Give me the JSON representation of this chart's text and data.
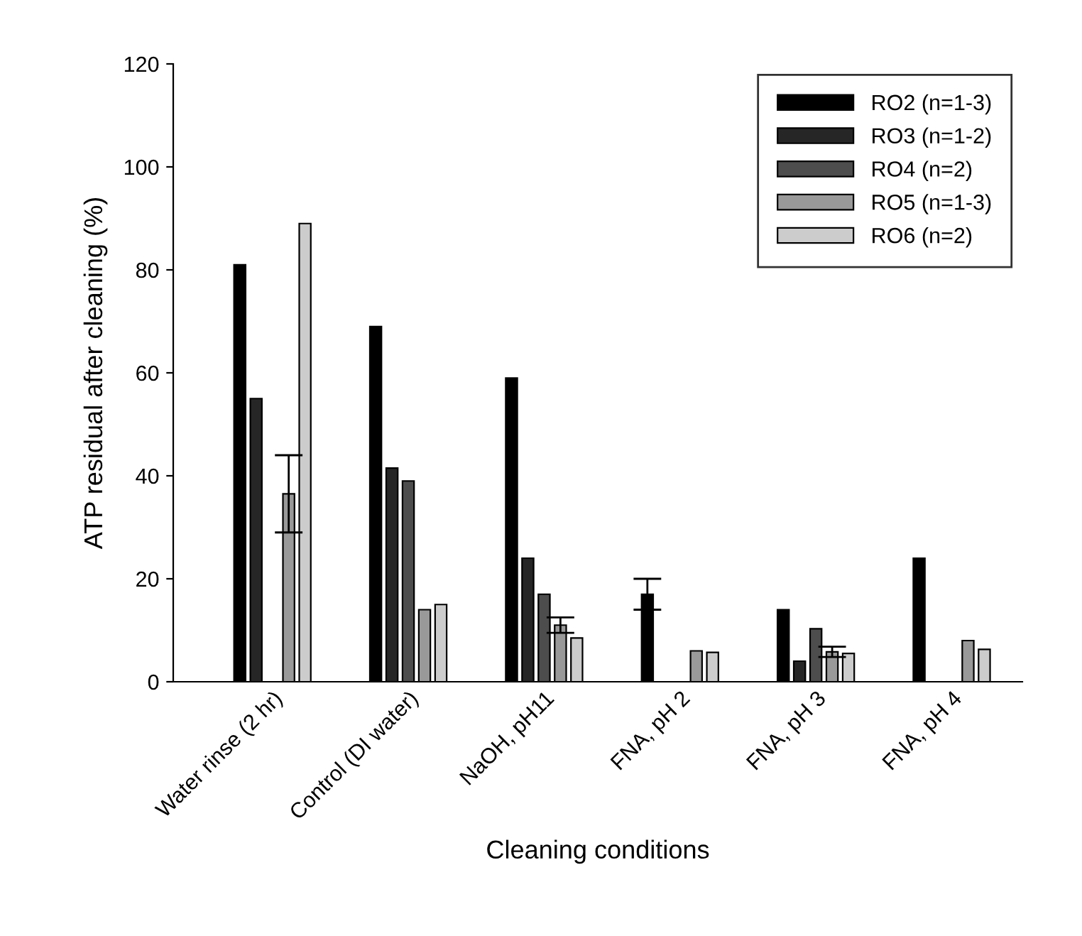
{
  "chart_data": {
    "type": "bar",
    "xlabel": "Cleaning conditions",
    "ylabel": "ATP residual after cleaning (%)",
    "categories": [
      "Water rinse (2 hr)",
      "Control (DI water)",
      "NaOH, pH11",
      "FNA, pH 2",
      "FNA, pH 3",
      "FNA, pH 4"
    ],
    "series": [
      {
        "name": "RO2 (n=1-3)",
        "color": "#000000",
        "values": [
          81,
          69,
          59,
          17,
          14,
          24
        ],
        "errors": [
          null,
          null,
          null,
          3,
          null,
          null
        ]
      },
      {
        "name": "RO3 (n=1-2)",
        "color": "#262626",
        "values": [
          55,
          41.5,
          24,
          null,
          4,
          null
        ]
      },
      {
        "name": "RO4 (n=2)",
        "color": "#4d4d4d",
        "values": [
          null,
          39,
          17,
          null,
          10.3,
          null
        ]
      },
      {
        "name": "RO5 (n=1-3)",
        "color": "#999999",
        "values": [
          36.5,
          14,
          11,
          6,
          5.8,
          8
        ],
        "errors": [
          7.5,
          null,
          1.5,
          null,
          1,
          null
        ]
      },
      {
        "name": "RO6 (n=2)",
        "color": "#cccccc",
        "values": [
          89,
          15,
          8.5,
          5.7,
          5.5,
          6.3
        ]
      }
    ],
    "ylim": [
      0,
      120
    ],
    "yticks": [
      0,
      20,
      40,
      60,
      80,
      100,
      120
    ],
    "legend": "top right",
    "grid": false
  }
}
